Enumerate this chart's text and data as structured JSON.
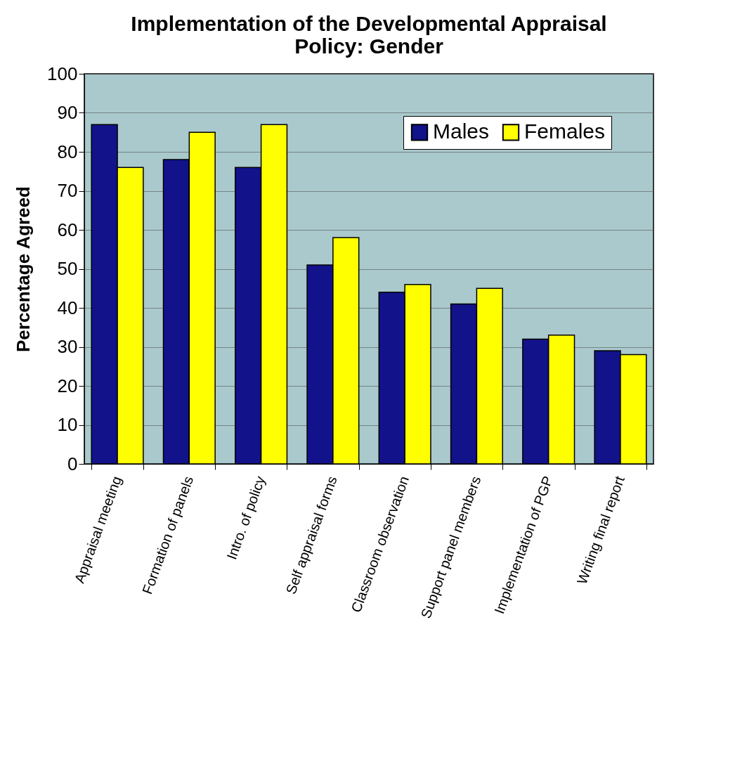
{
  "chart_data": {
    "type": "bar",
    "title": "Implementation of the Developmental Appraisal Policy: Gender",
    "ylabel": "Percentage Agreed",
    "categories": [
      "Appraisal meeting",
      "Formation of panels",
      "Intro. of policy",
      "Self appraisal forms",
      "Classroom observation",
      "Support panel members",
      "Implementation of PGP",
      "Writing final report"
    ],
    "series": [
      {
        "name": "Males",
        "color": "#12128a",
        "values": [
          87,
          78,
          76,
          51,
          44,
          41,
          32,
          29
        ]
      },
      {
        "name": "Females",
        "color": "#ffff00",
        "values": [
          76,
          85,
          87,
          58,
          46,
          45,
          33,
          28
        ]
      }
    ],
    "ylim": [
      0,
      100
    ],
    "yticks": [
      0,
      10,
      20,
      30,
      40,
      50,
      60,
      70,
      80,
      90,
      100
    ],
    "grid": "y",
    "legend": "top right"
  }
}
